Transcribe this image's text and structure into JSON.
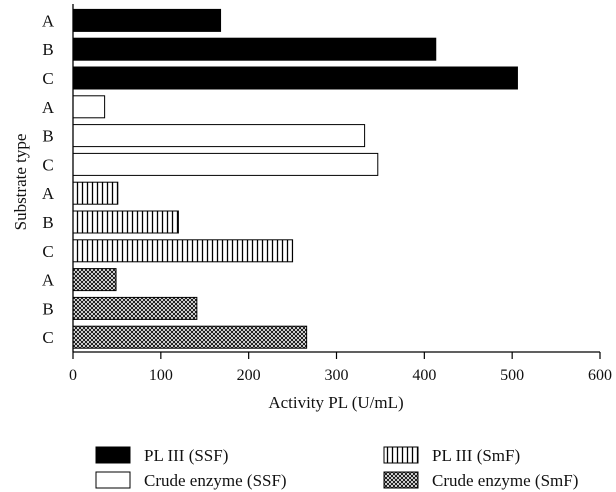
{
  "chart_data": {
    "type": "bar",
    "orientation": "horizontal",
    "xlabel": "Activity PL (U/mL)",
    "ylabel": "Substrate type",
    "xlim": [
      0,
      600
    ],
    "xticks": [
      "0",
      "100",
      "200",
      "300",
      "400",
      "500",
      "600"
    ],
    "categories": [
      "A",
      "B",
      "C"
    ],
    "grid": false,
    "legend_position": "bottom",
    "series": [
      {
        "name": "PL III (SSF)",
        "pattern": "solid-black",
        "values": [
          168,
          413,
          506
        ]
      },
      {
        "name": "Crude enzyme (SSF)",
        "pattern": "white",
        "values": [
          36,
          332,
          347
        ]
      },
      {
        "name": "PL III (SmF)",
        "pattern": "vertical-lines",
        "values": [
          51,
          120,
          250
        ]
      },
      {
        "name": "Crude enzyme (SmF)",
        "pattern": "crosshatch",
        "values": [
          49,
          141,
          266
        ]
      }
    ],
    "legend_order": [
      0,
      2,
      1,
      3
    ]
  }
}
